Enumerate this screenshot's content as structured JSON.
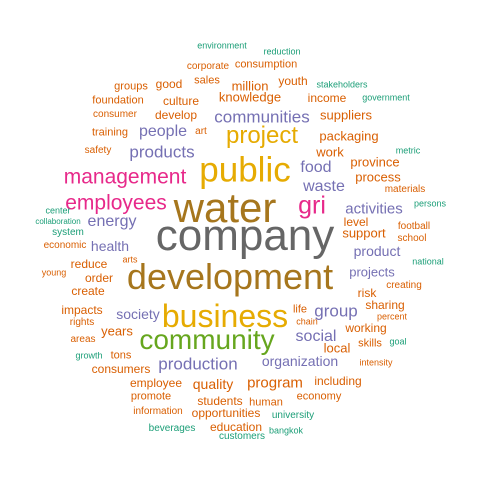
{
  "colors": {
    "gray": "#666666",
    "olive": "#A6761D",
    "gold": "#E6AB02",
    "pink": "#E7298A",
    "purple": "#7570B3",
    "green": "#66A61E",
    "orange": "#D95F02",
    "teal": "#1B9E77"
  },
  "words": [
    {
      "text": "environment",
      "color": "teal"
    },
    {
      "text": "reduction",
      "color": "teal"
    },
    {
      "text": "corporate",
      "color": "orange"
    },
    {
      "text": "consumption",
      "color": "orange"
    },
    {
      "text": "sales",
      "color": "orange"
    },
    {
      "text": "youth",
      "color": "orange"
    },
    {
      "text": "groups",
      "color": "orange"
    },
    {
      "text": "good",
      "color": "orange"
    },
    {
      "text": "million",
      "color": "orange"
    },
    {
      "text": "stakeholders",
      "color": "teal"
    },
    {
      "text": "foundation",
      "color": "orange"
    },
    {
      "text": "culture",
      "color": "orange"
    },
    {
      "text": "knowledge",
      "color": "orange"
    },
    {
      "text": "income",
      "color": "orange"
    },
    {
      "text": "government",
      "color": "teal"
    },
    {
      "text": "consumer",
      "color": "orange"
    },
    {
      "text": "develop",
      "color": "orange"
    },
    {
      "text": "communities",
      "color": "purple"
    },
    {
      "text": "suppliers",
      "color": "orange"
    },
    {
      "text": "training",
      "color": "orange"
    },
    {
      "text": "people",
      "color": "purple"
    },
    {
      "text": "art",
      "color": "orange"
    },
    {
      "text": "project",
      "color": "gold"
    },
    {
      "text": "packaging",
      "color": "orange"
    },
    {
      "text": "safety",
      "color": "orange"
    },
    {
      "text": "products",
      "color": "purple"
    },
    {
      "text": "metric",
      "color": "teal"
    },
    {
      "text": "work",
      "color": "orange"
    },
    {
      "text": "public",
      "color": "gold"
    },
    {
      "text": "province",
      "color": "orange"
    },
    {
      "text": "food",
      "color": "purple"
    },
    {
      "text": "management",
      "color": "pink"
    },
    {
      "text": "process",
      "color": "orange"
    },
    {
      "text": "waste",
      "color": "purple"
    },
    {
      "text": "materials",
      "color": "orange"
    },
    {
      "text": "gri",
      "color": "pink"
    },
    {
      "text": "employees",
      "color": "pink"
    },
    {
      "text": "water",
      "color": "olive"
    },
    {
      "text": "persons",
      "color": "teal"
    },
    {
      "text": "center",
      "color": "teal"
    },
    {
      "text": "activities",
      "color": "purple"
    },
    {
      "text": "collaboration",
      "color": "teal"
    },
    {
      "text": "energy",
      "color": "purple"
    },
    {
      "text": "level",
      "color": "orange"
    },
    {
      "text": "football",
      "color": "orange"
    },
    {
      "text": "system",
      "color": "teal"
    },
    {
      "text": "company",
      "color": "gray"
    },
    {
      "text": "support",
      "color": "orange"
    },
    {
      "text": "school",
      "color": "orange"
    },
    {
      "text": "economic",
      "color": "orange"
    },
    {
      "text": "health",
      "color": "purple"
    },
    {
      "text": "product",
      "color": "purple"
    },
    {
      "text": "arts",
      "color": "orange"
    },
    {
      "text": "reduce",
      "color": "orange"
    },
    {
      "text": "national",
      "color": "teal"
    },
    {
      "text": "young",
      "color": "orange"
    },
    {
      "text": "order",
      "color": "orange"
    },
    {
      "text": "development",
      "color": "olive"
    },
    {
      "text": "projects",
      "color": "purple"
    },
    {
      "text": "create",
      "color": "orange"
    },
    {
      "text": "creating",
      "color": "orange"
    },
    {
      "text": "risk",
      "color": "orange"
    },
    {
      "text": "sharing",
      "color": "orange"
    },
    {
      "text": "impacts",
      "color": "orange"
    },
    {
      "text": "business",
      "color": "gold"
    },
    {
      "text": "life",
      "color": "orange"
    },
    {
      "text": "group",
      "color": "purple"
    },
    {
      "text": "society",
      "color": "purple"
    },
    {
      "text": "percent",
      "color": "orange"
    },
    {
      "text": "chain",
      "color": "orange"
    },
    {
      "text": "rights",
      "color": "orange"
    },
    {
      "text": "working",
      "color": "orange"
    },
    {
      "text": "years",
      "color": "orange"
    },
    {
      "text": "social",
      "color": "purple"
    },
    {
      "text": "areas",
      "color": "orange"
    },
    {
      "text": "community",
      "color": "green"
    },
    {
      "text": "goal",
      "color": "teal"
    },
    {
      "text": "skills",
      "color": "orange"
    },
    {
      "text": "local",
      "color": "orange"
    },
    {
      "text": "growth",
      "color": "teal"
    },
    {
      "text": "tons",
      "color": "orange"
    },
    {
      "text": "intensity",
      "color": "orange"
    },
    {
      "text": "production",
      "color": "purple"
    },
    {
      "text": "organization",
      "color": "purple"
    },
    {
      "text": "consumers",
      "color": "orange"
    },
    {
      "text": "program",
      "color": "orange"
    },
    {
      "text": "including",
      "color": "orange"
    },
    {
      "text": "employee",
      "color": "orange"
    },
    {
      "text": "quality",
      "color": "orange"
    },
    {
      "text": "promote",
      "color": "orange"
    },
    {
      "text": "economy",
      "color": "orange"
    },
    {
      "text": "students",
      "color": "orange"
    },
    {
      "text": "human",
      "color": "orange"
    },
    {
      "text": "information",
      "color": "orange"
    },
    {
      "text": "opportunities",
      "color": "orange"
    },
    {
      "text": "university",
      "color": "teal"
    },
    {
      "text": "beverages",
      "color": "teal"
    },
    {
      "text": "education",
      "color": "orange"
    },
    {
      "text": "bangkok",
      "color": "teal"
    },
    {
      "text": "customers",
      "color": "teal"
    }
  ]
}
